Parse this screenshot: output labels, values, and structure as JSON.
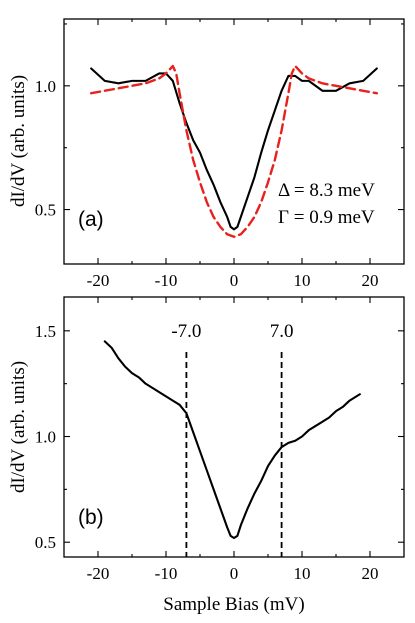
{
  "chart_data": [
    {
      "type": "line",
      "panel_label": "(a)",
      "xlabel": "",
      "ylabel": "dI/dV (arb. units)",
      "xlim": [
        -25,
        25
      ],
      "ylim": [
        0.28,
        1.27
      ],
      "xticks": [
        -20,
        -10,
        0,
        10,
        20
      ],
      "xtick_labels": [
        "-20",
        "-10",
        "0",
        "10",
        "20"
      ],
      "yticks": [
        0.5,
        1.0
      ],
      "ytick_labels": [
        "0.5",
        "1.0"
      ],
      "annotations": [
        "Δ = 8.3 meV",
        "Γ = 0.9 meV"
      ],
      "series": [
        {
          "color": "#000000",
          "style": "solid",
          "x": [
            -21,
            -19,
            -17,
            -15,
            -13,
            -11,
            -10,
            -9,
            -8,
            -7,
            -6,
            -5,
            -4,
            -3,
            -2,
            -1,
            -0.5,
            0,
            0.5,
            1,
            2,
            3,
            4,
            5,
            6,
            7,
            8,
            9,
            10,
            11,
            13,
            15,
            17,
            19,
            21
          ],
          "y": [
            1.07,
            1.02,
            1.01,
            1.02,
            1.02,
            1.05,
            1.05,
            1.02,
            0.93,
            0.85,
            0.78,
            0.73,
            0.66,
            0.6,
            0.53,
            0.47,
            0.43,
            0.42,
            0.43,
            0.47,
            0.55,
            0.63,
            0.73,
            0.82,
            0.9,
            0.98,
            1.04,
            1.04,
            1.02,
            1.02,
            0.98,
            0.98,
            1.01,
            1.02,
            1.07
          ]
        },
        {
          "color": "#e8211e",
          "style": "dashed",
          "x": [
            -21,
            -19,
            -17,
            -15,
            -13,
            -11,
            -10,
            -9,
            -8.5,
            -8,
            -7,
            -6,
            -5,
            -4,
            -3,
            -2,
            -1,
            0,
            1,
            2,
            3,
            4,
            5,
            6,
            7,
            8,
            8.5,
            9,
            10,
            11,
            13,
            15,
            17,
            19,
            21
          ],
          "y": [
            0.97,
            0.98,
            0.99,
            1.0,
            1.01,
            1.03,
            1.05,
            1.08,
            1.05,
            0.97,
            0.82,
            0.7,
            0.61,
            0.53,
            0.47,
            0.43,
            0.4,
            0.39,
            0.4,
            0.43,
            0.47,
            0.53,
            0.61,
            0.7,
            0.82,
            0.97,
            1.05,
            1.08,
            1.05,
            1.03,
            1.01,
            1.0,
            0.99,
            0.98,
            0.97
          ]
        }
      ]
    },
    {
      "type": "line",
      "panel_label": "(b)",
      "xlabel": "Sample Bias (mV)",
      "ylabel": "dI/dV (arb. units)",
      "xlim": [
        -25,
        25
      ],
      "ylim": [
        0.43,
        1.66
      ],
      "xticks": [
        -20,
        -10,
        0,
        10,
        20
      ],
      "xtick_labels": [
        "-20",
        "-10",
        "0",
        "10",
        "20"
      ],
      "yticks": [
        0.5,
        1.0,
        1.5
      ],
      "ytick_labels": [
        "0.5",
        "1.0",
        "1.5"
      ],
      "vlines": [
        {
          "x": -7.0,
          "label": "-7.0"
        },
        {
          "x": 7.0,
          "label": "7.0"
        }
      ],
      "series": [
        {
          "color": "#000000",
          "style": "solid",
          "x": [
            -19,
            -18,
            -17,
            -16,
            -15,
            -14,
            -13,
            -12,
            -11,
            -10,
            -9,
            -8,
            -7,
            -6,
            -5,
            -4,
            -3,
            -2,
            -1,
            -0.5,
            0,
            0.5,
            1,
            2,
            3,
            4,
            5,
            6,
            7,
            8,
            9,
            10,
            11,
            12,
            13,
            14,
            15,
            16,
            17,
            18,
            18.5
          ],
          "y": [
            1.45,
            1.42,
            1.37,
            1.33,
            1.3,
            1.28,
            1.25,
            1.23,
            1.21,
            1.19,
            1.17,
            1.15,
            1.11,
            1.02,
            0.93,
            0.84,
            0.75,
            0.66,
            0.57,
            0.53,
            0.52,
            0.53,
            0.58,
            0.66,
            0.73,
            0.79,
            0.86,
            0.91,
            0.95,
            0.97,
            0.98,
            1.0,
            1.03,
            1.05,
            1.07,
            1.09,
            1.12,
            1.14,
            1.17,
            1.19,
            1.2
          ]
        }
      ]
    }
  ]
}
